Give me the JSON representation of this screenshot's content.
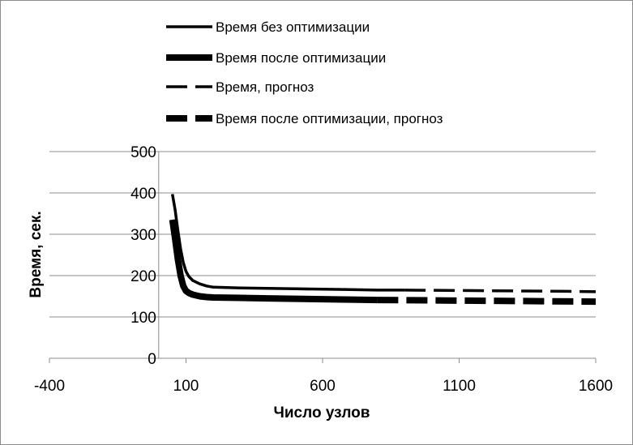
{
  "chart_data": {
    "type": "line",
    "title": "",
    "xlabel": "Число узлов",
    "ylabel": "Время, сек.",
    "xlim": [
      -400,
      1600
    ],
    "ylim": [
      0,
      500
    ],
    "x_ticks": [
      "-400",
      "100",
      "600",
      "1100",
      "1600"
    ],
    "x_tick_values": [
      -400,
      100,
      600,
      1100,
      1600
    ],
    "y_ticks": [
      "0",
      "100",
      "200",
      "300",
      "400",
      "500"
    ],
    "y_tick_values": [
      0,
      100,
      200,
      300,
      400,
      500
    ],
    "grid": "horizontal",
    "legend_position": "top",
    "series": [
      {
        "name": "Время без оптимизации",
        "style": "solid-thin",
        "x": [
          50,
          60,
          70,
          80,
          90,
          100,
          110,
          125,
          150,
          175,
          200,
          300,
          400,
          500,
          600,
          700,
          800,
          900
        ],
        "y": [
          397,
          360,
          310,
          265,
          232,
          210,
          198,
          188,
          180,
          175,
          172,
          170,
          169,
          168,
          167,
          166,
          165,
          165
        ]
      },
      {
        "name": "Время после оптимизации",
        "style": "solid-thick",
        "x": [
          50,
          60,
          70,
          80,
          90,
          100,
          110,
          125,
          150,
          175,
          200,
          300,
          400,
          500,
          600,
          700,
          800
        ],
        "y": [
          335,
          290,
          240,
          200,
          175,
          163,
          158,
          154,
          150,
          148,
          147,
          146,
          145,
          144,
          143,
          142,
          141
        ]
      },
      {
        "name": "Время, прогноз",
        "style": "dashed-thin",
        "x": [
          900,
          1100,
          1300,
          1500,
          1600
        ],
        "y": [
          165,
          164,
          163,
          162,
          161
        ]
      },
      {
        "name": "Время после оптимизации, прогноз",
        "style": "dashed-thick",
        "x": [
          800,
          1000,
          1200,
          1400,
          1600
        ],
        "y": [
          141,
          140,
          139,
          138,
          137
        ]
      }
    ]
  }
}
